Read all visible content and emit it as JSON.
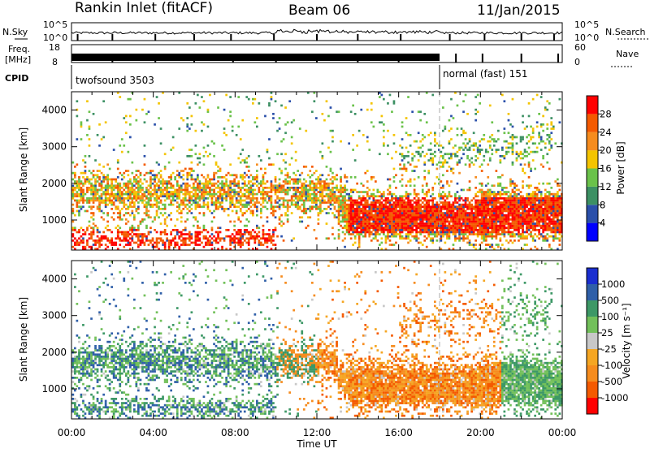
{
  "header": {
    "station": "Rankin Inlet (fitACF)",
    "beam": "Beam 06",
    "date": "11/Jan/2015"
  },
  "top_panels": {
    "nsky_label": "N.Sky",
    "nsearch_label": "N.Search",
    "noise_ticks_left": [
      "10^5",
      "10^0"
    ],
    "noise_ticks_right": [
      "10^5",
      "10^0"
    ],
    "freq_label_line1": "Freq.",
    "freq_label_line2": "[MHz]",
    "freq_ticks": [
      "18",
      "8"
    ],
    "nave_label": "Nave",
    "nave_ticks": [
      "60",
      "0"
    ],
    "cpid_label": "CPID",
    "cpid_segments": [
      {
        "start_hour": 0,
        "end_hour": 18,
        "label": "twofsound 3503"
      },
      {
        "start_hour": 18,
        "end_hour": 24,
        "label": "normal (fast) 151"
      }
    ]
  },
  "panels": {
    "ylabel": "Slant Range [km]",
    "xlabel": "Time UT",
    "x_ticks": [
      "00:00",
      "04:00",
      "08:00",
      "12:00",
      "16:00",
      "20:00",
      "00:00"
    ],
    "y_ticks": [
      "1000",
      "2000",
      "3000",
      "4000"
    ]
  },
  "colors": {
    "power": [
      "#0000ff",
      "#2a4faa",
      "#3c9063",
      "#6ac24a",
      "#f4c400",
      "#f68c1e",
      "#f45a00",
      "#ff0000"
    ],
    "velocity": [
      "#ff0000",
      "#f45a00",
      "#f68c1e",
      "#f5a623",
      "#c8c8c8",
      "#72c05a",
      "#3d9866",
      "#2f5fa8",
      "#1a2ed0"
    ]
  },
  "chart_data": [
    {
      "type": "heatmap",
      "title": "",
      "xlabel": "Time UT",
      "ylabel": "Slant Range [km]",
      "x_range_hours": [
        0,
        24
      ],
      "y_range_km": [
        180,
        4500
      ],
      "colorbar_label": "Power [dB]",
      "colorbar_ticks": [
        "4",
        "8",
        "12",
        "16",
        "20",
        "24",
        "28"
      ],
      "colorbar_range": [
        0,
        32
      ]
    },
    {
      "type": "heatmap",
      "title": "",
      "xlabel": "Time UT",
      "ylabel": "Slant Range [km]",
      "x_range_hours": [
        0,
        24
      ],
      "y_range_km": [
        180,
        4500
      ],
      "colorbar_label": "Velocity [m s⁻¹]",
      "colorbar_ticks": [
        "1000",
        "500",
        "100",
        "25",
        "-25",
        "-100",
        "-500",
        "-1000"
      ]
    }
  ]
}
